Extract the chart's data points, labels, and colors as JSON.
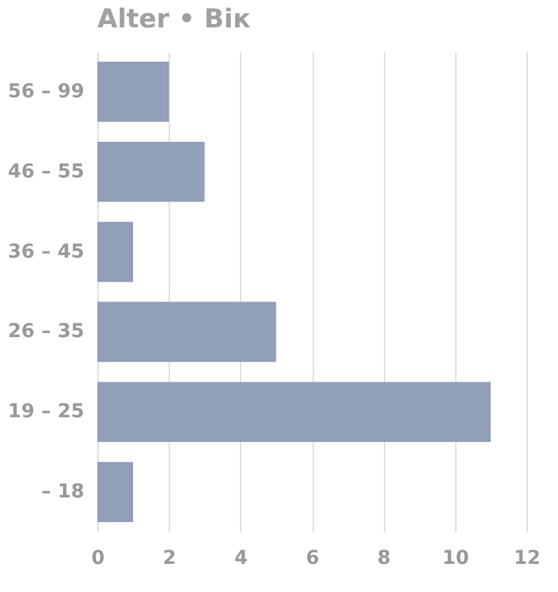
{
  "chart_data": {
    "type": "bar",
    "title": "Alter • Вік",
    "orientation": "horizontal",
    "categories": [
      "56 – 99",
      "46 – 55",
      "36 – 45",
      "26 – 35",
      "19 – 25",
      "– 18"
    ],
    "values": [
      2,
      3,
      1,
      5,
      11,
      1
    ],
    "color": "#919fb8",
    "xlim": [
      0,
      12
    ],
    "xticks": [
      0,
      2,
      4,
      6,
      8,
      10,
      12
    ],
    "grid": "x"
  }
}
